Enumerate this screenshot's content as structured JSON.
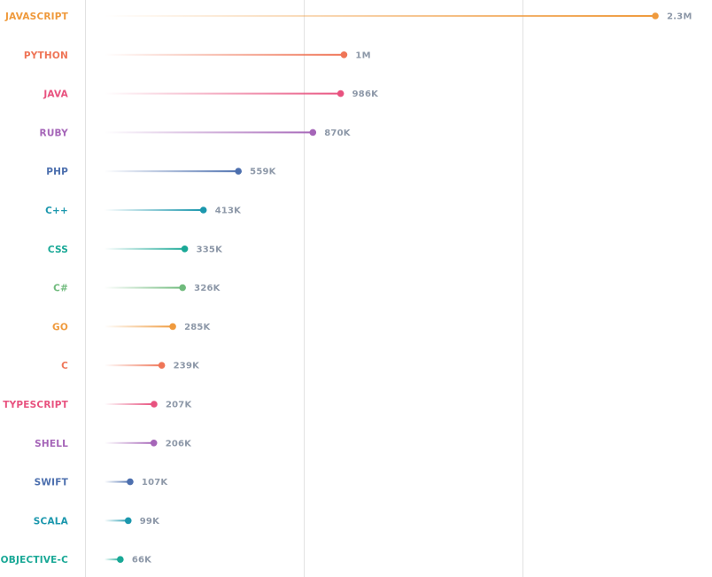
{
  "chart_data": {
    "type": "lollipop",
    "orientation": "horizontal",
    "categories": [
      "JAVASCRIPT",
      "PYTHON",
      "JAVA",
      "RUBY",
      "PHP",
      "C++",
      "CSS",
      "C#",
      "GO",
      "C",
      "TYPESCRIPT",
      "SHELL",
      "SWIFT",
      "SCALA",
      "OBJECTIVE-C"
    ],
    "values": [
      2300000,
      1000000,
      986000,
      870000,
      559000,
      413000,
      335000,
      326000,
      285000,
      239000,
      207000,
      206000,
      107000,
      99000,
      66000
    ],
    "value_labels": [
      "2.3M",
      "1M",
      "986K",
      "870K",
      "559K",
      "413K",
      "335K",
      "326K",
      "285K",
      "239K",
      "207K",
      "206K",
      "107K",
      "99K",
      "66K"
    ],
    "colors": [
      "#ef9a3d",
      "#ef7557",
      "#e8527f",
      "#a565b8",
      "#4c6fae",
      "#1b97ad",
      "#19a896",
      "#6fba7c",
      "#ef9a3d",
      "#ef7557",
      "#e8527f",
      "#a565b8",
      "#4c6fae",
      "#1b97ad",
      "#19a896"
    ],
    "xlim": [
      0,
      2300000
    ],
    "grid": true,
    "legend": "none"
  }
}
